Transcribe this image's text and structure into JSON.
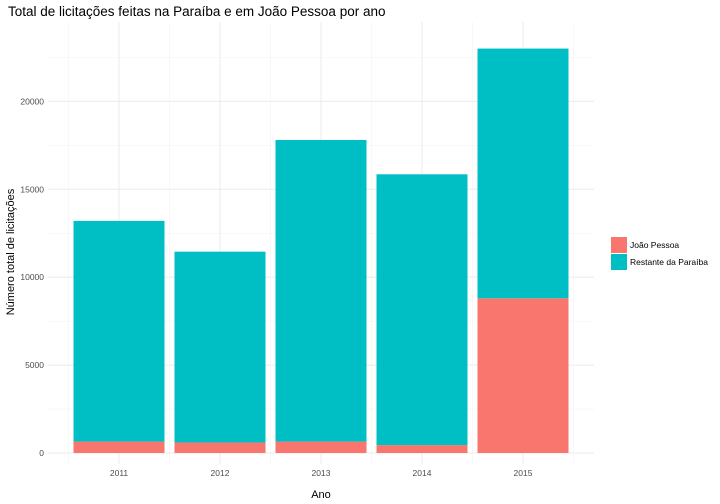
{
  "chart_data": {
    "type": "bar",
    "stacked": true,
    "title": "Total de licitações feitas na Paraíba e em João Pessoa por ano",
    "xlabel": "Ano",
    "ylabel": "Número total de licitações",
    "categories": [
      "2011",
      "2012",
      "2013",
      "2014",
      "2015"
    ],
    "series": [
      {
        "name": "João Pessoa",
        "color": "#F8766D",
        "values": [
          650,
          600,
          650,
          450,
          8800
        ]
      },
      {
        "name": "Restante da Paraíba",
        "color": "#00BFC4",
        "values": [
          12550,
          10850,
          17150,
          15400,
          14200
        ]
      }
    ],
    "ylim": [
      0,
      24000
    ],
    "yticks": [
      0,
      5000,
      10000,
      15000,
      20000
    ],
    "grid": true,
    "legend": "right"
  }
}
